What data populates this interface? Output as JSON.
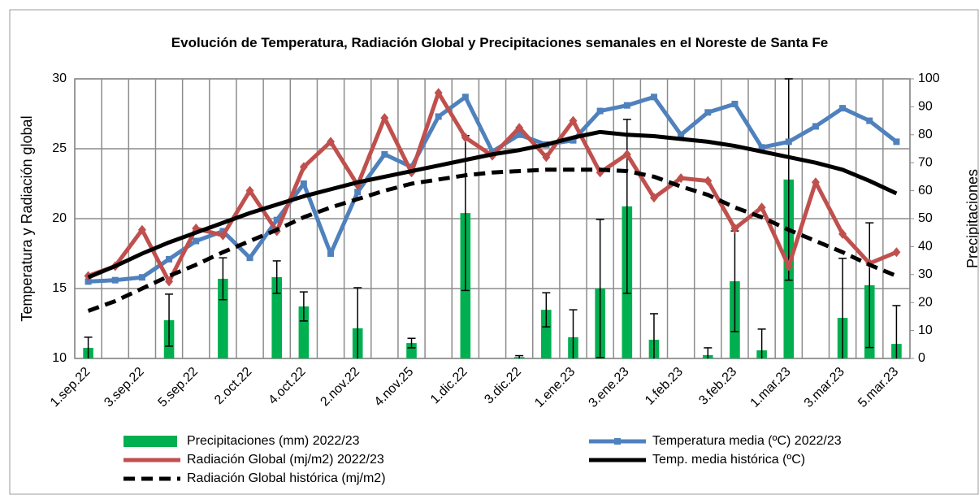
{
  "chart_data": {
    "type": "combo",
    "title": "Evolución de Temperatura, Radiación Global y Precipitaciones semanales en el Noreste de Santa Fe",
    "ylabel": "Temperatura y Radiación global",
    "y2label": "Precipitaciones",
    "categories": [
      "1.sep.22",
      null,
      "3.sep.22",
      null,
      "5.sep.22",
      null,
      "2.oct.22",
      null,
      "4.oct.22",
      null,
      "2.nov.22",
      null,
      "4.nov.25",
      null,
      "1.dic.22",
      null,
      "3.dic.22",
      null,
      "1.ene.23",
      null,
      "3.ene.23",
      null,
      "1.feb.23",
      null,
      "3.feb.23",
      null,
      "1.mar.23",
      null,
      "3.mar.23",
      null,
      "5.mar.23"
    ],
    "ylim": [
      10,
      30
    ],
    "yticks": [
      10,
      15,
      20,
      25,
      30
    ],
    "y2lim": [
      0,
      100
    ],
    "y2ticks": [
      0,
      10,
      20,
      30,
      40,
      50,
      60,
      70,
      80,
      90,
      100
    ],
    "grid": true,
    "legend": "bottom",
    "series": [
      {
        "name": "Precipitaciones (mm) 2022/23",
        "type": "bar",
        "axis": "y2",
        "color": "#00b050",
        "values": [
          3.8,
          null,
          null,
          13.7,
          null,
          28.5,
          null,
          29.1,
          18.6,
          null,
          10.8,
          null,
          5.5,
          null,
          52,
          null,
          0.5,
          17.4,
          7.6,
          25,
          54.4,
          6.7,
          null,
          1.2,
          27.6,
          2.9,
          64,
          null,
          14.5,
          26.2,
          5.2
        ],
        "errors": [
          3.8,
          null,
          null,
          9.3,
          null,
          7.5,
          null,
          5.8,
          5.2,
          null,
          14.5,
          null,
          1.7,
          null,
          27.7,
          null,
          0.5,
          6.1,
          9.8,
          24.7,
          31.1,
          9.3,
          null,
          2.6,
          18,
          7.6,
          36,
          null,
          21.3,
          22.3,
          13.7
        ]
      },
      {
        "name": "Temperatura media (ºC) 2022/23",
        "type": "line",
        "color": "#4f81bd",
        "marker": "square",
        "values": [
          15.5,
          15.6,
          15.8,
          17.1,
          18.4,
          19.1,
          17.2,
          19.9,
          22.5,
          17.5,
          21.9,
          24.6,
          23.7,
          27.3,
          28.7,
          24.8,
          26.0,
          25.3,
          25.6,
          27.7,
          28.1,
          28.7,
          26.0,
          27.6,
          28.2,
          25.1,
          25.5,
          26.6,
          27.9,
          27.0,
          25.5
        ]
      },
      {
        "name": "Radiación Global (mj/m2) 2022/23",
        "type": "line",
        "color": "#c0504d",
        "marker": "diamond",
        "values": [
          15.9,
          16.6,
          19.2,
          15.5,
          19.3,
          18.8,
          22.0,
          19.1,
          23.7,
          25.5,
          22.4,
          27.2,
          23.3,
          29.0,
          25.8,
          24.5,
          26.5,
          24.4,
          27.0,
          23.3,
          24.6,
          21.5,
          22.9,
          22.7,
          19.3,
          20.8,
          16.6,
          22.6,
          18.9,
          16.8,
          17.6
        ]
      },
      {
        "name": "Temp. media histórica (ºC)",
        "type": "line",
        "color": "#000000",
        "values": [
          15.8,
          16.6,
          17.5,
          18.3,
          19.0,
          19.7,
          20.4,
          21.0,
          21.6,
          22.1,
          22.6,
          23.0,
          23.4,
          23.8,
          24.2,
          24.6,
          24.9,
          25.3,
          25.8,
          26.2,
          26.0,
          25.9,
          25.7,
          25.5,
          25.2,
          24.8,
          24.4,
          24.0,
          23.5,
          22.7,
          21.8
        ]
      },
      {
        "name": "Radiación Global histórica (mj/m2)",
        "type": "line",
        "color": "#000000",
        "dash": true,
        "values": [
          13.4,
          14.1,
          15.0,
          15.9,
          16.7,
          17.6,
          18.4,
          19.2,
          20.1,
          20.8,
          21.4,
          22.0,
          22.5,
          22.8,
          23.1,
          23.3,
          23.4,
          23.5,
          23.5,
          23.5,
          23.4,
          23.0,
          22.3,
          21.7,
          20.8,
          20.1,
          19.2,
          18.4,
          17.6,
          16.7,
          15.9
        ]
      }
    ]
  }
}
